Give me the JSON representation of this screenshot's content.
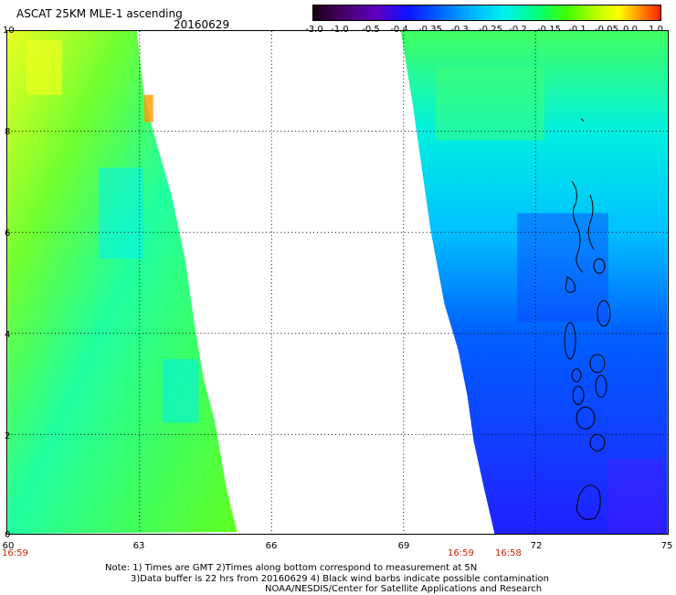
{
  "header": {
    "title": "ASCAT 25KM MLE-1 ascending",
    "date": "20160629"
  },
  "colorbar": {
    "labels": [
      "-3.0",
      "-1.0",
      "-0.5",
      "-0.4",
      "-0.35",
      "-0.3",
      "-0.25",
      "-0.2",
      "-0.15",
      "-0.1",
      "-0.05",
      "0.0",
      "1.0"
    ],
    "colors": [
      "#1a0010",
      "#5a0090",
      "#2020ff",
      "#0050ff",
      "#0090ff",
      "#00c8ff",
      "#00ffd0",
      "#00ff60",
      "#60ff00",
      "#c0ff00",
      "#ffff00",
      "#ff9000",
      "#ff2000"
    ]
  },
  "axes": {
    "y_ticks": [
      "10",
      "8",
      "6",
      "4",
      "2",
      "0"
    ],
    "x_ticks": [
      "60",
      "63",
      "66",
      "69",
      "72",
      "75"
    ]
  },
  "times": {
    "left": "16:59",
    "right_a": "16:59",
    "right_b": "16:58"
  },
  "footer": {
    "line1": "Note: 1) Times are GMT 2)Times along bottom correspond to measurement at 5N",
    "line2": "3)Data buffer is 22 hrs from 20160629 4) Black wind barbs indicate possible contamination",
    "line3": "NOAA/NESDIS/Center for Satellite Applications and Research"
  }
}
